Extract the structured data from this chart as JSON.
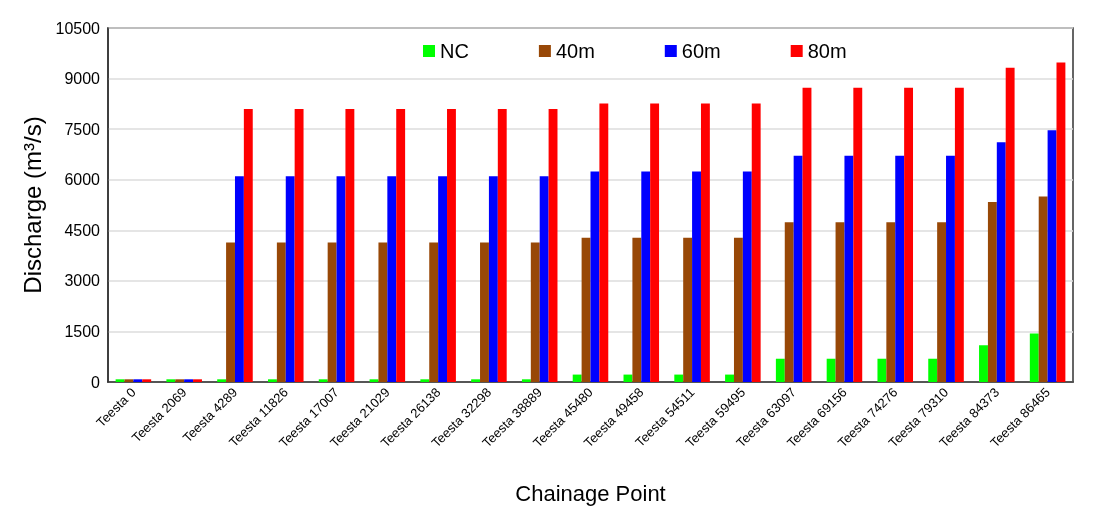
{
  "chart_data": {
    "type": "bar",
    "xlabel": "Chainage Point",
    "ylabel": "Discharge (m³/s)",
    "categories": [
      "Teesta 0",
      "Teesta 2069",
      "Teesta 4289",
      "Teesta 11826",
      "Teesta 17007",
      "Teesta 21029",
      "Teesta 26138",
      "Teesta 32298",
      "Teesta 38889",
      "Teesta 45480",
      "Teesta 49458",
      "Teesta 54511",
      "Teesta 59495",
      "Teesta 63097",
      "Teesta 69156",
      "Teesta 74276",
      "Teesta 79310",
      "Teesta 84373",
      "Teesta 86465"
    ],
    "series": [
      {
        "name": "NC",
        "color": "#00ff00",
        "values": [
          80,
          80,
          80,
          80,
          80,
          80,
          80,
          80,
          80,
          220,
          220,
          220,
          220,
          690,
          690,
          690,
          690,
          1090,
          1440
        ]
      },
      {
        "name": "40m",
        "color": "#984807",
        "values": [
          80,
          80,
          4140,
          4140,
          4140,
          4140,
          4140,
          4140,
          4140,
          4280,
          4280,
          4280,
          4280,
          4740,
          4740,
          4740,
          4740,
          5340,
          5500
        ]
      },
      {
        "name": "60m",
        "color": "#0000ff",
        "values": [
          80,
          80,
          6100,
          6100,
          6100,
          6100,
          6100,
          6100,
          6100,
          6240,
          6240,
          6240,
          6240,
          6710,
          6710,
          6710,
          6710,
          7110,
          7470
        ]
      },
      {
        "name": "80m",
        "color": "#ff0000",
        "values": [
          80,
          80,
          8100,
          8100,
          8100,
          8100,
          8100,
          8100,
          8100,
          8260,
          8260,
          8260,
          8260,
          8730,
          8730,
          8730,
          8730,
          9320,
          9480
        ]
      }
    ],
    "ylim": [
      0,
      10500
    ],
    "yticks": [
      0,
      1500,
      3000,
      4500,
      6000,
      7500,
      9000,
      10500
    ],
    "grid": "y",
    "legend": "top"
  }
}
